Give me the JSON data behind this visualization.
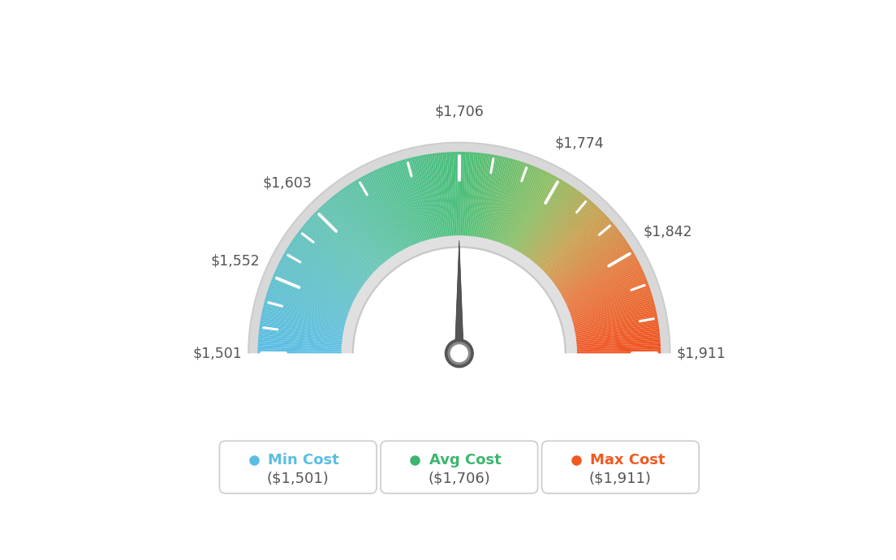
{
  "min_val": 1501,
  "max_val": 1911,
  "avg_val": 1706,
  "tick_labels": [
    "$1,501",
    "$1,552",
    "$1,603",
    "$1,706",
    "$1,774",
    "$1,842",
    "$1,911"
  ],
  "tick_values": [
    1501,
    1552,
    1603,
    1706,
    1774,
    1842,
    1911
  ],
  "legend_items": [
    {
      "label": "Min Cost",
      "value": "($1,501)",
      "color": "#5bbde4"
    },
    {
      "label": "Avg Cost",
      "value": "($1,706)",
      "color": "#3db56e"
    },
    {
      "label": "Max Cost",
      "value": "($1,911)",
      "color": "#f05a22"
    }
  ],
  "background_color": "#ffffff",
  "needle_value": 1706,
  "gradient_colors": [
    [
      0.0,
      [
        91,
        189,
        228
      ]
    ],
    [
      0.25,
      [
        100,
        195,
        180
      ]
    ],
    [
      0.5,
      [
        72,
        190,
        120
      ]
    ],
    [
      0.65,
      [
        140,
        190,
        100
      ]
    ],
    [
      0.75,
      [
        200,
        160,
        80
      ]
    ],
    [
      0.85,
      [
        230,
        120,
        60
      ]
    ],
    [
      1.0,
      [
        240,
        80,
        30
      ]
    ]
  ]
}
